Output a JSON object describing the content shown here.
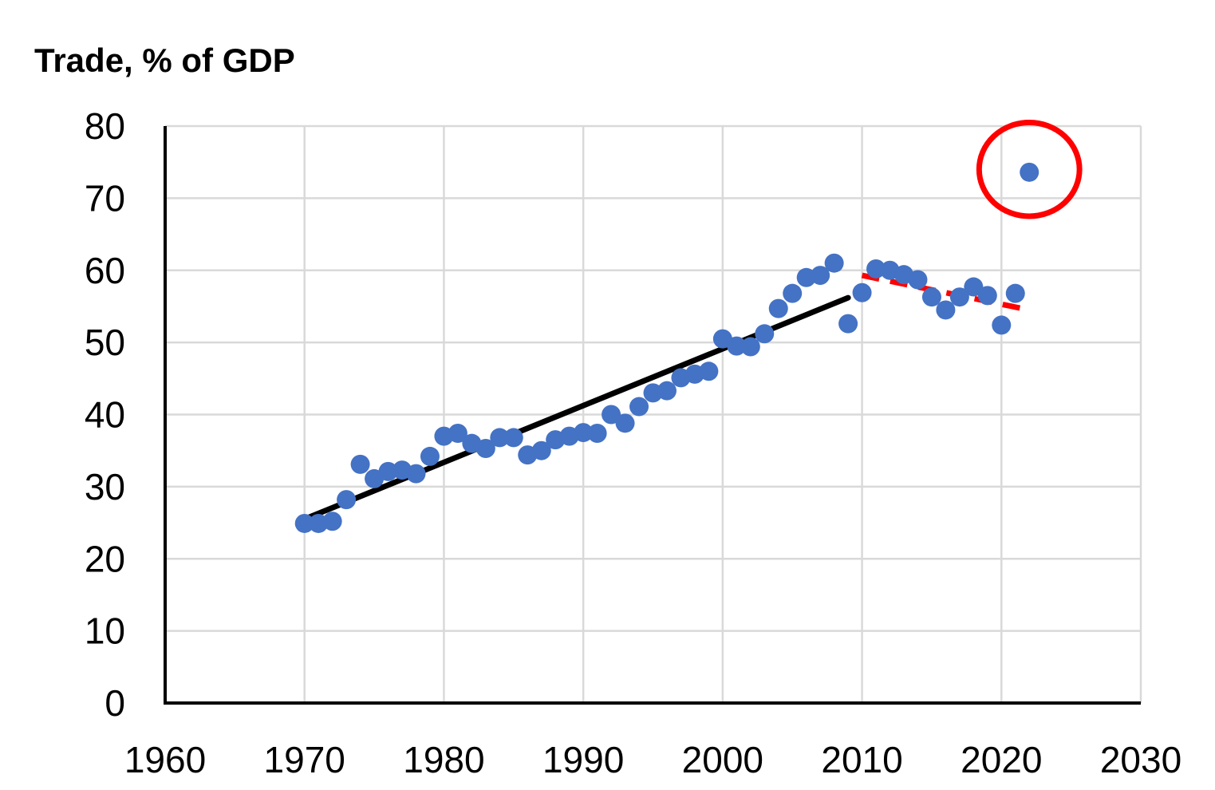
{
  "chart_data": {
    "type": "scatter",
    "title": "Trade, % of GDP",
    "xlabel": "",
    "ylabel": "",
    "xlim": [
      1960,
      2030
    ],
    "ylim": [
      0,
      80
    ],
    "xticks": [
      1960,
      1970,
      1980,
      1990,
      2000,
      2010,
      2020,
      2030
    ],
    "yticks": [
      0,
      10,
      20,
      30,
      40,
      50,
      60,
      70,
      80
    ],
    "grid": true,
    "legend": "none",
    "series": [
      {
        "type": "scatter",
        "color": "#4472C4",
        "x": [
          1970,
          1971,
          1972,
          1973,
          1974,
          1975,
          1976,
          1977,
          1978,
          1979,
          1980,
          1981,
          1982,
          1983,
          1984,
          1985,
          1986,
          1987,
          1988,
          1989,
          1990,
          1991,
          1992,
          1993,
          1994,
          1995,
          1996,
          1997,
          1998,
          1999,
          2000,
          2001,
          2002,
          2003,
          2004,
          2005,
          2006,
          2007,
          2008,
          2009,
          2010,
          2011,
          2012,
          2013,
          2014,
          2015,
          2016,
          2017,
          2018,
          2019,
          2020,
          2021,
          2022
        ],
        "values": [
          24.9,
          24.9,
          25.2,
          28.2,
          33.1,
          31.1,
          32.1,
          32.3,
          31.8,
          34.2,
          37.0,
          37.4,
          36.0,
          35.3,
          36.8,
          36.8,
          34.4,
          35.0,
          36.5,
          37.0,
          37.5,
          37.4,
          40.0,
          38.8,
          41.1,
          43.0,
          43.3,
          45.1,
          45.6,
          46.0,
          50.5,
          49.5,
          49.4,
          51.2,
          54.7,
          56.8,
          59.0,
          59.3,
          61.0,
          52.6,
          56.9,
          60.2,
          60.0,
          59.4,
          58.7,
          56.3,
          54.5,
          56.3,
          57.7,
          56.5,
          52.4,
          56.8,
          73.6
        ]
      },
      {
        "type": "line",
        "style": "solid",
        "color": "#000000",
        "x": [
          1970,
          2009
        ],
        "values": [
          25.5,
          56.2
        ]
      },
      {
        "type": "line",
        "style": "dashed",
        "color": "#FF0000",
        "x": [
          2010,
          2022
        ],
        "values": [
          59.3,
          54.5
        ]
      }
    ],
    "annotations": [
      {
        "type": "circle",
        "color": "#FF0000",
        "x": 2022,
        "y": 74.0,
        "rx_years": 3.6,
        "ry_units": 6.5
      }
    ]
  }
}
